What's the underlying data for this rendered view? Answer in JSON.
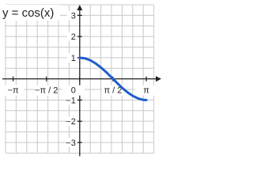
{
  "chart_data": {
    "type": "line",
    "title": "y = cos(x)",
    "x": [
      0,
      0.25,
      0.5,
      0.75,
      1,
      1.25,
      1.5,
      1.75,
      2,
      2.25,
      2.5,
      2.75,
      3,
      3.14159
    ],
    "series": [
      {
        "color": "#1f5ccc",
        "values": [
          1,
          0.97,
          0.88,
          0.73,
          0.54,
          0.32,
          0.07,
          -0.18,
          -0.42,
          -0.63,
          -0.8,
          -0.92,
          -0.99,
          -1
        ]
      }
    ],
    "xlim": [
      -3.5,
      3.7
    ],
    "ylim": [
      -3.6,
      3.5
    ],
    "xticks": [
      {
        "value": -3.14159,
        "label": "−π"
      },
      {
        "value": -1.5708,
        "label": "−π / 2"
      },
      0,
      {
        "value": 1.5708,
        "label": "π / 2"
      },
      {
        "value": 3.14159,
        "label": "π"
      }
    ],
    "yticks": [
      3,
      2,
      1,
      {
        "value": -1,
        "label": "−1"
      },
      {
        "value": -2,
        "label": "−2"
      },
      {
        "value": -3,
        "label": "−3"
      }
    ],
    "grid": true,
    "xgrid": [
      -3.5,
      -3,
      -2.5,
      -2,
      -1.5,
      -1,
      -0.5,
      0.5,
      1,
      1.5,
      2,
      2.5,
      3,
      3.5
    ],
    "ygrid": [
      3.5,
      3,
      2.5,
      2,
      1.5,
      1,
      0.5,
      -0.5,
      -1,
      -1.5,
      -2,
      -2.5,
      -3,
      -3.5
    ]
  }
}
